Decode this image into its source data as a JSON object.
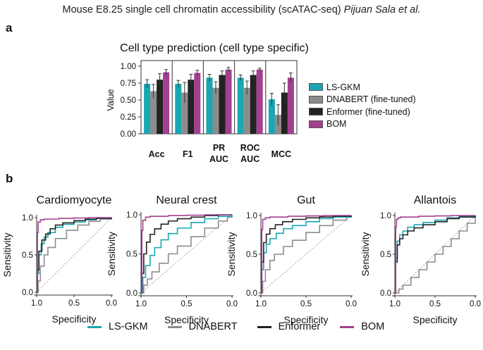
{
  "header": {
    "title_prefix": "Mouse E8.25 single cell chromatin accessibility (scATAC-seq) ",
    "title_authors": "Pijuan Sala et al."
  },
  "panel_a": {
    "letter": "a",
    "title": "Cell type prediction (cell type specific)"
  },
  "panel_b": {
    "letter": "b"
  },
  "colors": {
    "LS-GKM": "#1aa6b2",
    "DNABERT": "#8c8c8c",
    "Enformer": "#222222",
    "BOM": "#a3408f",
    "diagonal": "#a8a8a8"
  },
  "legend_a": [
    {
      "name": "LS-GKM",
      "color": "#1aa6b2"
    },
    {
      "name": "DNABERT (fine-tuned)",
      "color": "#8c8c8c"
    },
    {
      "name": "Enformer (fine-tuned)",
      "color": "#222222"
    },
    {
      "name": "BOM",
      "color": "#a3408f"
    }
  ],
  "legend_b": [
    {
      "name": "LS-GKM",
      "color": "#1aa6b2"
    },
    {
      "name": "DNABERT",
      "color": "#8c8c8c"
    },
    {
      "name": "Enformer",
      "color": "#222222"
    },
    {
      "name": "BOM",
      "color": "#a3408f"
    }
  ],
  "chart_data": [
    {
      "type": "bar",
      "title": "Cell type prediction (cell type specific)",
      "ylabel": "Value",
      "xlabel": "",
      "ylim": [
        0,
        1.0
      ],
      "yticks": [
        "0.00",
        "0.25",
        "0.50",
        "0.75",
        "1.00"
      ],
      "categories": [
        "Acc",
        "F1",
        "PR AUC",
        "ROC AUC",
        "MCC"
      ],
      "series": [
        {
          "name": "LS-GKM",
          "values": [
            0.74,
            0.74,
            0.83,
            0.83,
            0.51
          ],
          "errors": [
            0.06,
            0.05,
            0.05,
            0.04,
            0.09
          ]
        },
        {
          "name": "DNABERT (fine-tuned)",
          "values": [
            0.63,
            0.61,
            0.68,
            0.68,
            0.28
          ],
          "errors": [
            0.1,
            0.15,
            0.09,
            0.1,
            0.15
          ]
        },
        {
          "name": "Enformer (fine-tuned)",
          "values": [
            0.8,
            0.8,
            0.87,
            0.87,
            0.61
          ],
          "errors": [
            0.09,
            0.08,
            0.06,
            0.06,
            0.14
          ]
        },
        {
          "name": "BOM",
          "values": [
            0.91,
            0.9,
            0.95,
            0.95,
            0.83
          ],
          "errors": [
            0.04,
            0.04,
            0.03,
            0.02,
            0.07
          ]
        }
      ]
    },
    {
      "type": "line",
      "title": "Cardiomyocyte",
      "xlabel": "Specificity",
      "ylabel": "Sensitivity",
      "xlim": [
        1.0,
        0.0
      ],
      "ylim": [
        0.0,
        1.0
      ],
      "xticks": [
        "1.0",
        "0.5",
        "0.0"
      ],
      "yticks": [
        "0.0",
        "0.5",
        "1.0"
      ],
      "series": [
        {
          "name": "BOM",
          "x": [
            1.0,
            0.99,
            0.98,
            0.95,
            0.9,
            0.7,
            0.5,
            0.3,
            0.0
          ],
          "y": [
            0.0,
            0.8,
            0.94,
            0.97,
            0.98,
            0.99,
            0.995,
            1.0,
            1.0
          ]
        },
        {
          "name": "Enformer",
          "x": [
            1.0,
            0.99,
            0.97,
            0.93,
            0.88,
            0.82,
            0.75,
            0.65,
            0.5,
            0.35,
            0.2,
            0.0
          ],
          "y": [
            0.0,
            0.3,
            0.55,
            0.7,
            0.78,
            0.85,
            0.9,
            0.93,
            0.96,
            0.98,
            0.99,
            1.0
          ]
        },
        {
          "name": "LS-GKM",
          "x": [
            1.0,
            0.99,
            0.97,
            0.94,
            0.9,
            0.85,
            0.75,
            0.65,
            0.5,
            0.35,
            0.2,
            0.0
          ],
          "y": [
            0.0,
            0.25,
            0.5,
            0.65,
            0.74,
            0.8,
            0.87,
            0.91,
            0.94,
            0.97,
            0.99,
            1.0
          ]
        },
        {
          "name": "DNABERT",
          "x": [
            1.0,
            0.98,
            0.95,
            0.9,
            0.85,
            0.75,
            0.6,
            0.45,
            0.3,
            0.15,
            0.0
          ],
          "y": [
            0.0,
            0.15,
            0.35,
            0.5,
            0.6,
            0.72,
            0.83,
            0.9,
            0.95,
            0.98,
            1.0
          ]
        }
      ]
    },
    {
      "type": "line",
      "title": "Neural crest",
      "xlabel": "Specificity",
      "ylabel": "Sensitivity",
      "xlim": [
        1.0,
        0.0
      ],
      "ylim": [
        0.0,
        1.0
      ],
      "xticks": [
        "1.0",
        "0.5",
        "0.0"
      ],
      "yticks": [
        "0.0",
        "0.5",
        "1.0"
      ],
      "series": [
        {
          "name": "BOM",
          "x": [
            1.0,
            0.99,
            0.98,
            0.95,
            0.9,
            0.7,
            0.5,
            0.3,
            0.0
          ],
          "y": [
            0.0,
            0.8,
            0.93,
            0.97,
            0.98,
            0.99,
            0.995,
            1.0,
            1.0
          ]
        },
        {
          "name": "Enformer",
          "x": [
            1.0,
            0.99,
            0.97,
            0.94,
            0.9,
            0.85,
            0.78,
            0.7,
            0.6,
            0.45,
            0.3,
            0.15,
            0.0
          ],
          "y": [
            0.0,
            0.25,
            0.5,
            0.65,
            0.75,
            0.82,
            0.88,
            0.92,
            0.95,
            0.97,
            0.99,
            1.0,
            1.0
          ]
        },
        {
          "name": "LS-GKM",
          "x": [
            1.0,
            0.98,
            0.95,
            0.9,
            0.85,
            0.78,
            0.7,
            0.6,
            0.45,
            0.3,
            0.15,
            0.0
          ],
          "y": [
            0.0,
            0.2,
            0.35,
            0.48,
            0.58,
            0.68,
            0.76,
            0.83,
            0.9,
            0.95,
            0.98,
            1.0
          ]
        },
        {
          "name": "DNABERT",
          "x": [
            1.0,
            0.97,
            0.93,
            0.88,
            0.8,
            0.7,
            0.6,
            0.45,
            0.3,
            0.15,
            0.05,
            0.0
          ],
          "y": [
            0.0,
            0.1,
            0.18,
            0.27,
            0.38,
            0.5,
            0.6,
            0.72,
            0.83,
            0.92,
            0.97,
            1.0
          ]
        }
      ]
    },
    {
      "type": "line",
      "title": "Gut",
      "xlabel": "Specificity",
      "ylabel": "Sensitivity",
      "xlim": [
        1.0,
        0.0
      ],
      "ylim": [
        0.0,
        1.0
      ],
      "xticks": [
        "1.0",
        "0.5",
        "0.0"
      ],
      "yticks": [
        "0.0",
        "0.5",
        "1.0"
      ],
      "series": [
        {
          "name": "BOM",
          "x": [
            1.0,
            0.99,
            0.98,
            0.95,
            0.9,
            0.7,
            0.5,
            0.3,
            0.0
          ],
          "y": [
            0.0,
            0.82,
            0.95,
            0.97,
            0.98,
            0.99,
            0.995,
            1.0,
            1.0
          ]
        },
        {
          "name": "Enformer",
          "x": [
            1.0,
            0.99,
            0.97,
            0.94,
            0.9,
            0.84,
            0.76,
            0.65,
            0.5,
            0.35,
            0.2,
            0.0
          ],
          "y": [
            0.0,
            0.4,
            0.65,
            0.76,
            0.83,
            0.88,
            0.92,
            0.95,
            0.97,
            0.98,
            0.99,
            1.0
          ]
        },
        {
          "name": "LS-GKM",
          "x": [
            1.0,
            0.99,
            0.97,
            0.94,
            0.9,
            0.83,
            0.75,
            0.65,
            0.5,
            0.35,
            0.2,
            0.0
          ],
          "y": [
            0.0,
            0.3,
            0.52,
            0.63,
            0.7,
            0.77,
            0.83,
            0.87,
            0.92,
            0.96,
            0.98,
            1.0
          ]
        },
        {
          "name": "DNABERT",
          "x": [
            1.0,
            0.98,
            0.95,
            0.9,
            0.85,
            0.75,
            0.65,
            0.5,
            0.35,
            0.2,
            0.05,
            0.0
          ],
          "y": [
            0.0,
            0.15,
            0.3,
            0.42,
            0.5,
            0.6,
            0.68,
            0.78,
            0.87,
            0.94,
            0.98,
            1.0
          ]
        }
      ]
    },
    {
      "type": "line",
      "title": "Allantois",
      "xlabel": "Specificity",
      "ylabel": "Sensitivity",
      "xlim": [
        1.0,
        0.0
      ],
      "ylim": [
        0.0,
        1.0
      ],
      "xticks": [
        "1.0",
        "0.5",
        "0.0"
      ],
      "yticks": [
        "0.0",
        "0.5",
        "1.0"
      ],
      "series": [
        {
          "name": "BOM",
          "x": [
            1.0,
            0.99,
            0.98,
            0.96,
            0.93,
            0.7,
            0.5,
            0.3,
            0.0
          ],
          "y": [
            0.0,
            0.85,
            0.95,
            0.97,
            0.98,
            0.99,
            0.995,
            1.0,
            1.0
          ]
        },
        {
          "name": "Enformer",
          "x": [
            1.0,
            0.99,
            0.97,
            0.94,
            0.9,
            0.84,
            0.76,
            0.65,
            0.5,
            0.35,
            0.2,
            0.0
          ],
          "y": [
            0.0,
            0.4,
            0.62,
            0.7,
            0.75,
            0.8,
            0.84,
            0.88,
            0.92,
            0.96,
            0.98,
            1.0
          ]
        },
        {
          "name": "LS-GKM",
          "x": [
            1.0,
            0.99,
            0.97,
            0.94,
            0.9,
            0.84,
            0.76,
            0.65,
            0.5,
            0.35,
            0.2,
            0.0
          ],
          "y": [
            0.0,
            0.45,
            0.67,
            0.75,
            0.8,
            0.85,
            0.88,
            0.91,
            0.94,
            0.97,
            0.99,
            1.0
          ]
        },
        {
          "name": "DNABERT",
          "x": [
            1.0,
            0.95,
            0.9,
            0.8,
            0.7,
            0.6,
            0.5,
            0.4,
            0.3,
            0.2,
            0.1,
            0.0
          ],
          "y": [
            0.0,
            0.05,
            0.1,
            0.2,
            0.3,
            0.4,
            0.5,
            0.6,
            0.7,
            0.8,
            0.9,
            1.0
          ]
        }
      ]
    }
  ]
}
